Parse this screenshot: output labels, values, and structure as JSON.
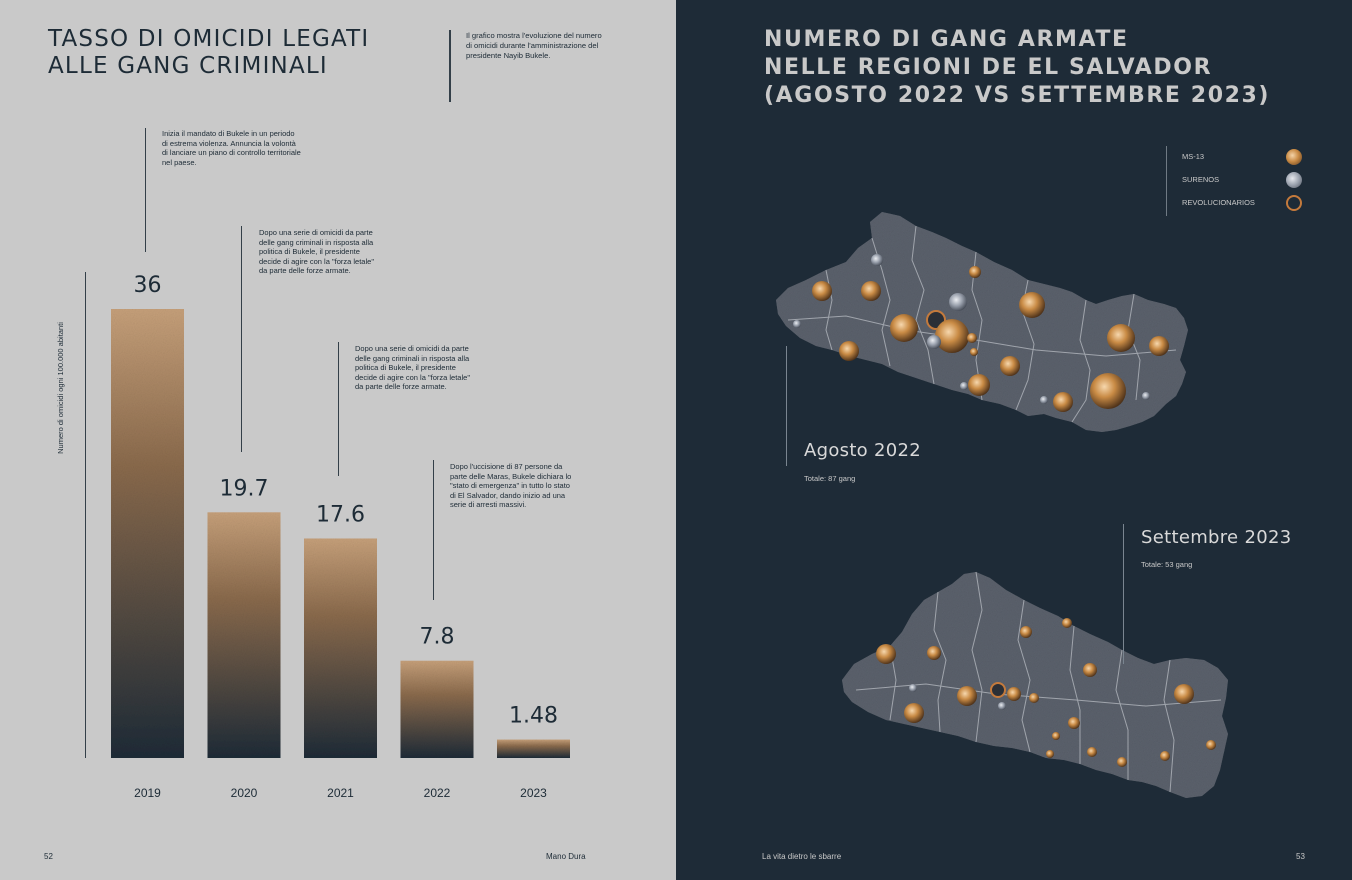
{
  "left_page": {
    "title_lines": [
      "TASSO DI OMICIDI LEGATI",
      "ALLE GANG CRIMINALI"
    ],
    "intro_text": "Il grafico mostra l'evoluzione del numero di omicidi durante l'amministrazione del presidente Nayib Bukele.",
    "annotations": [
      "Inizia il mandato di Bukele in un periodo di estrema violenza. Annuncia la volontà di lanciare un piano di controllo territoriale nel paese.",
      "Dopo una serie di omicidi da parte delle gang criminali in risposta alla politica di Bukele, il presidente decide di agire con la \"forza letale\" da parte delle forze armate.",
      "Dopo una serie di omicidi da parte delle gang criminali in risposta alla politica di Bukele, il presidente decide di agire con la \"forza letale\" da parte delle forze armate.",
      "Dopo l'uccisione di 87 persone da parte delle Maras, Bukele dichiara lo \"stato di emergenza\" in tutto lo stato di El Salvador, dando inizio ad una serie di arresti massivi."
    ],
    "page_number": "52",
    "footer": "Mano Dura"
  },
  "chart_data": {
    "type": "bar",
    "title": "TASSO DI OMICIDI LEGATI ALLE GANG CRIMINALI",
    "xlabel": "",
    "ylabel": "Numero di omicidi ogni 100.000 abitanti",
    "categories": [
      "2019",
      "2020",
      "2021",
      "2022",
      "2023"
    ],
    "values": [
      36,
      19.7,
      17.6,
      7.8,
      1.48
    ],
    "value_labels": [
      "36",
      "19.7",
      "17.6",
      "7.8",
      "1.48"
    ],
    "ylim": [
      0,
      36
    ],
    "grid": false,
    "colors": {
      "bar_top": "#c6a07a",
      "bar_bottom": "#1e2b37"
    }
  },
  "right_page": {
    "title_lines": [
      "NUMERO DI GANG ARMATE",
      "NELLE REGIONI DE EL SALVADOR",
      "(AGOSTO 2022 VS SETTEMBRE 2023)"
    ],
    "legend": [
      {
        "label": "MS-13",
        "icon": "ms13-dot-icon"
      },
      {
        "label": "SURENOS",
        "icon": "surenos-dot-icon"
      },
      {
        "label": "REVOLUCIONARIOS",
        "icon": "revolucionarios-ring-icon"
      }
    ],
    "map_2022": {
      "label": "Agosto 2022",
      "total": "Totale: 87 gang"
    },
    "map_2023": {
      "label": "Settembre 2023",
      "total": "Totale: 53 gang"
    },
    "footer": "La vita dietro le sbarre",
    "page_number": "53",
    "colors": {
      "background": "#1e2b37",
      "map_fill": "#5c626d",
      "ms13": "#c98b45",
      "surenos": "#9aa1ad",
      "revolucionarios": "#c47a3c"
    }
  }
}
